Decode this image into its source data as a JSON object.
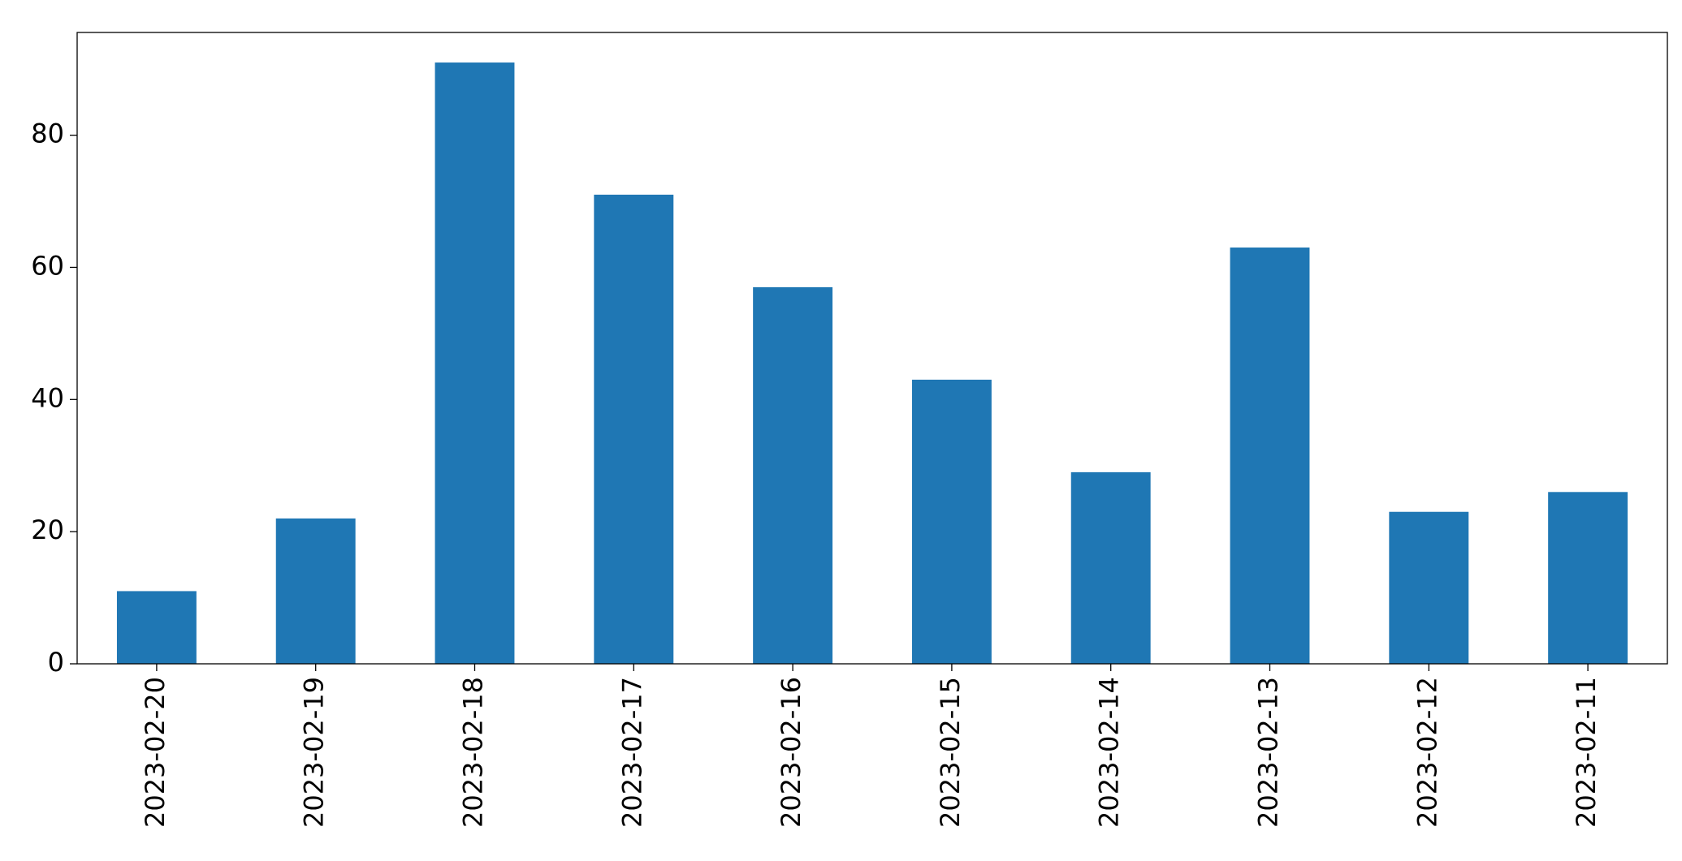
{
  "chart_data": {
    "type": "bar",
    "categories": [
      "2023-02-20",
      "2023-02-19",
      "2023-02-18",
      "2023-02-17",
      "2023-02-16",
      "2023-02-15",
      "2023-02-14",
      "2023-02-13",
      "2023-02-12",
      "2023-02-11"
    ],
    "values": [
      11,
      22,
      91,
      71,
      57,
      43,
      29,
      63,
      23,
      26
    ],
    "color": "#1f77b4",
    "ylim": [
      0,
      95.55
    ],
    "yticks": [
      0,
      20,
      40,
      60,
      80
    ],
    "grid": false
  }
}
